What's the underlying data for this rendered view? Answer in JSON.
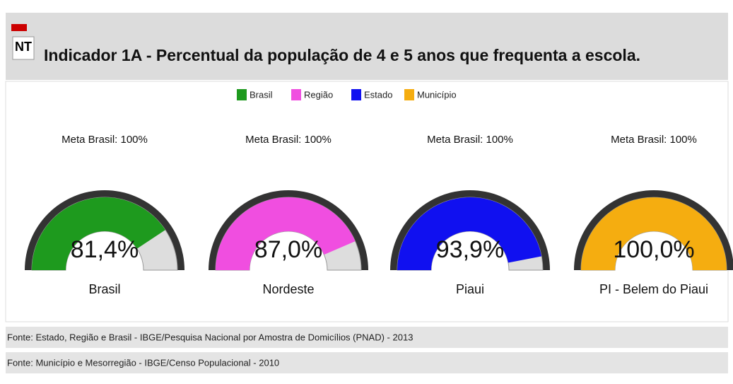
{
  "icon": "NT",
  "chart_data": {
    "type": "gauge",
    "title": "Indicador 1A - Percentual da população de 4 e 5 anos que frequenta a escola.",
    "legend": [
      {
        "name": "Brasil",
        "color": "#1e9a1e"
      },
      {
        "name": "Região",
        "color": "#f04ee0"
      },
      {
        "name": "Estado",
        "color": "#1010f0"
      },
      {
        "name": "Município",
        "color": "#f5ad10"
      }
    ],
    "target_label": "Meta Brasil: 100%",
    "categories": [
      "Brasil",
      "Nordeste",
      "Piaui",
      "PI - Belem do Piaui"
    ],
    "values": [
      81.4,
      87.0,
      93.9,
      100.0
    ],
    "value_labels": [
      "81,4%",
      "87,0%",
      "93,9%",
      "100,0%"
    ],
    "ylim": [
      0,
      100
    ]
  },
  "sources": [
    "Fonte: Estado, Região e Brasil - IBGE/Pesquisa Nacional por Amostra de Domicílios (PNAD) - 2013",
    "Fonte: Município e Mesorregião - IBGE/Censo Populacional - 2010"
  ]
}
